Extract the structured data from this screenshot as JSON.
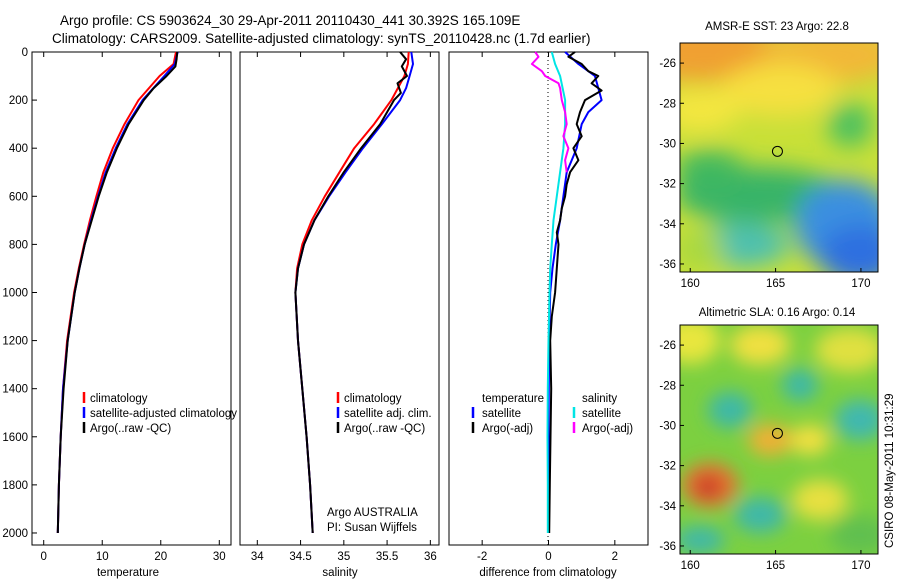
{
  "figure": {
    "title_line1": "Argo profile: CS 5903624_30 29-Apr-2011 20110430_441 30.392S 165.109E",
    "title_line2": "Climatology: CARS2009. Satellite-adjusted climatology: synTS_20110428.nc (1.7d earlier)",
    "side_label": "CSIRO 08-May-2011 10:31:29",
    "credit_line1": "Argo AUSTRALIA",
    "credit_line2": "PI: Susan Wijffels"
  },
  "colors": {
    "climatology": "#ff0000",
    "satellite": "#0000ff",
    "argo": "#000000",
    "salinity_satellite": "#00e5e5",
    "salinity_argo": "#ff00ff"
  },
  "chart_data": [
    {
      "id": "temperature",
      "type": "line",
      "xlabel": "temperature",
      "ylabel": "",
      "xlim": [
        -2,
        32
      ],
      "ylim": [
        2050,
        0
      ],
      "xticks": [
        0,
        10,
        20,
        30
      ],
      "yticks": [
        0,
        200,
        400,
        600,
        800,
        1000,
        1200,
        1400,
        1600,
        1800,
        2000
      ],
      "legend": [
        "climatology",
        "satellite-adjusted climatology",
        "Argo(..raw -QC)"
      ],
      "series": [
        {
          "name": "climatology",
          "color": "#ff0000",
          "depth": [
            0,
            50,
            100,
            200,
            300,
            400,
            500,
            600,
            700,
            800,
            900,
            1000,
            1200,
            1400,
            1600,
            1800,
            2000
          ],
          "values": [
            22.6,
            22.2,
            19.8,
            16.2,
            13.8,
            11.8,
            10.2,
            9.0,
            7.9,
            6.9,
            6.0,
            5.2,
            4.0,
            3.3,
            2.9,
            2.6,
            2.4
          ]
        },
        {
          "name": "satellite-adjusted climatology",
          "color": "#0000ff",
          "depth": [
            0,
            50,
            100,
            200,
            300,
            400,
            500,
            600,
            700,
            800,
            900,
            1000,
            1200,
            1400,
            1600,
            1800,
            2000
          ],
          "values": [
            22.9,
            22.4,
            20.6,
            16.9,
            14.3,
            12.3,
            10.6,
            9.3,
            8.1,
            7.0,
            6.1,
            5.3,
            4.1,
            3.3,
            2.9,
            2.6,
            2.4
          ]
        },
        {
          "name": "Argo(..raw -QC)",
          "color": "#000000",
          "depth": [
            0,
            30,
            60,
            100,
            150,
            200,
            300,
            400,
            500,
            600,
            700,
            800,
            900,
            1000,
            1200,
            1400,
            1600,
            1800,
            2000
          ],
          "values": [
            22.8,
            22.7,
            22.5,
            21.0,
            18.8,
            17.1,
            14.5,
            12.5,
            10.8,
            9.4,
            8.2,
            7.0,
            6.1,
            5.3,
            4.1,
            3.4,
            2.9,
            2.6,
            2.4
          ]
        }
      ]
    },
    {
      "id": "salinity",
      "type": "line",
      "xlabel": "salinity",
      "ylabel": "",
      "xlim": [
        33.8,
        36.1
      ],
      "ylim": [
        2050,
        0
      ],
      "xticks": [
        34,
        34.5,
        35,
        35.5,
        36
      ],
      "yticks": [],
      "legend": [
        "climatology",
        "satellite adj. clim.",
        "Argo(..raw -QC)"
      ],
      "series": [
        {
          "name": "climatology",
          "color": "#ff0000",
          "depth": [
            0,
            50,
            100,
            200,
            300,
            400,
            500,
            600,
            700,
            800,
            900,
            1000,
            1200,
            1400,
            1600,
            1800,
            2000
          ],
          "values": [
            35.75,
            35.74,
            35.7,
            35.55,
            35.35,
            35.12,
            34.95,
            34.78,
            34.63,
            34.52,
            34.46,
            34.44,
            34.47,
            34.52,
            34.57,
            34.61,
            34.64
          ]
        },
        {
          "name": "satellite adj. clim.",
          "color": "#0000ff",
          "depth": [
            0,
            50,
            100,
            150,
            200,
            300,
            400,
            500,
            600,
            700,
            800,
            900,
            1000,
            1200,
            1400,
            1600,
            1800,
            2000
          ],
          "values": [
            35.78,
            35.8,
            35.76,
            35.72,
            35.65,
            35.44,
            35.22,
            35.02,
            34.83,
            34.66,
            34.54,
            34.47,
            34.44,
            34.47,
            34.52,
            34.57,
            34.61,
            34.64
          ]
        },
        {
          "name": "Argo(..raw -QC)",
          "color": "#000000",
          "depth": [
            0,
            30,
            60,
            100,
            130,
            170,
            200,
            250,
            300,
            400,
            500,
            600,
            700,
            800,
            900,
            1000,
            1200,
            1400,
            1600,
            1800,
            2000
          ],
          "values": [
            35.65,
            35.72,
            35.67,
            35.73,
            35.62,
            35.66,
            35.58,
            35.5,
            35.42,
            35.2,
            35.0,
            34.82,
            34.66,
            34.54,
            34.47,
            34.44,
            34.47,
            34.52,
            34.57,
            34.61,
            34.64
          ]
        }
      ]
    },
    {
      "id": "difference",
      "type": "line",
      "xlabel": "difference from climatology",
      "ylabel": "",
      "xlim": [
        -3,
        3
      ],
      "ylim": [
        2050,
        0
      ],
      "xticks": [
        -2,
        0,
        2
      ],
      "yticks": [],
      "legend_left_title": "temperature",
      "legend_right_title": "salinity",
      "legend_left": [
        "satellite",
        "Argo(-adj)"
      ],
      "legend_right": [
        "satellite",
        "Argo(-adj)"
      ],
      "series": [
        {
          "name": "temperature satellite",
          "color": "#0000ff",
          "depth": [
            0,
            50,
            100,
            150,
            200,
            250,
            300,
            400,
            500,
            600,
            700,
            800,
            900,
            1000,
            1200,
            1400,
            1600,
            1800,
            2000
          ],
          "values": [
            0.5,
            0.9,
            1.4,
            1.5,
            1.6,
            1.2,
            1.0,
            0.85,
            0.55,
            0.45,
            0.35,
            0.22,
            0.12,
            0.05,
            0.02,
            0.01,
            0.0,
            0.0,
            0.0
          ]
        },
        {
          "name": "temperature Argo(-adj)",
          "color": "#000000",
          "depth": [
            0,
            20,
            50,
            80,
            100,
            130,
            160,
            200,
            250,
            300,
            350,
            400,
            450,
            500,
            550,
            600,
            650,
            700,
            750,
            800,
            900,
            1000,
            1100,
            1200,
            1400,
            1600,
            1800,
            2000
          ],
          "values": [
            0.8,
            0.6,
            1.0,
            1.2,
            1.5,
            1.3,
            1.6,
            1.1,
            0.95,
            0.85,
            1.0,
            0.75,
            0.9,
            0.65,
            0.55,
            0.5,
            0.4,
            0.35,
            0.25,
            0.3,
            0.25,
            0.2,
            0.1,
            0.05,
            0.08,
            0.06,
            0.04,
            0.02
          ]
        },
        {
          "name": "salinity satellite",
          "color": "#00e5e5",
          "depth": [
            0,
            50,
            100,
            200,
            300,
            400,
            500,
            600,
            700,
            800,
            900,
            1000,
            1200,
            1400,
            1600,
            1800,
            2000
          ],
          "values": [
            0.1,
            0.2,
            0.35,
            0.5,
            0.5,
            0.45,
            0.35,
            0.25,
            0.15,
            0.1,
            0.05,
            0.03,
            0.0,
            -0.02,
            -0.03,
            -0.02,
            -0.02
          ]
        },
        {
          "name": "salinity Argo(-adj)",
          "color": "#ff00ff",
          "depth": [
            0,
            20,
            50,
            80,
            100,
            130,
            150,
            200,
            250,
            300,
            350,
            400,
            450,
            500
          ],
          "values": [
            -0.4,
            -0.3,
            -0.5,
            -0.2,
            -0.1,
            0.3,
            0.35,
            0.4,
            0.5,
            0.55,
            0.45,
            0.6,
            0.5,
            0.55
          ]
        }
      ]
    },
    {
      "id": "sst-map",
      "type": "heatmap",
      "title": "AMSR-E SST: 23 Argo: 22.8",
      "xlim": [
        159.4,
        171
      ],
      "ylim": [
        -36.4,
        -25
      ],
      "xticks": [
        160,
        165,
        170
      ],
      "yticks": [
        -26,
        -28,
        -30,
        -32,
        -34,
        -36
      ],
      "argo_position": [
        165.109,
        -30.392
      ]
    },
    {
      "id": "sla-map",
      "type": "heatmap",
      "title": "Altimetric SLA: 0.16 Argo: 0.14",
      "xlim": [
        159.4,
        171
      ],
      "ylim": [
        -36.4,
        -25
      ],
      "xticks": [
        160,
        165,
        170
      ],
      "yticks": [
        -26,
        -28,
        -30,
        -32,
        -34,
        -36
      ],
      "argo_position": [
        165.109,
        -30.392
      ]
    }
  ]
}
